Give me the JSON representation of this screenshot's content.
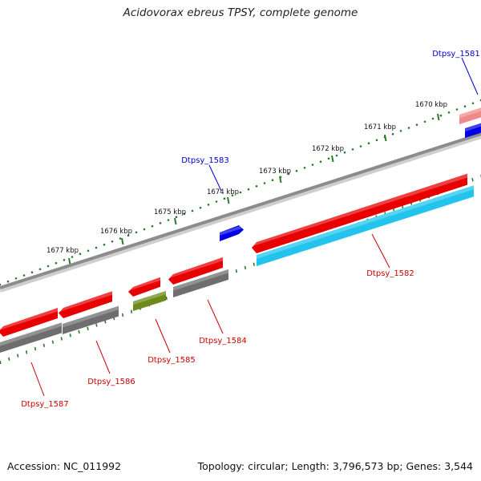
{
  "title": "Acidovorax ebreus TPSY, complete genome",
  "footer": {
    "accession": "Accession: NC_011992",
    "summary": "Topology: circular; Length: 3,796,573 bp; Genes: 3,544"
  },
  "kbp_ticks": [
    "1670 kbp",
    "1671 kbp",
    "1672 kbp",
    "1673 kbp",
    "1674 kbp",
    "1675 kbp",
    "1676 kbp",
    "1677 kbp"
  ],
  "gene_labels": [
    {
      "name": "Dtpsy_1581",
      "color": "#0000cc"
    },
    {
      "name": "Dtpsy_1582",
      "color": "#cc0000"
    },
    {
      "name": "Dtpsy_1583",
      "color": "#0000cc"
    },
    {
      "name": "Dtpsy_1584",
      "color": "#cc0000"
    },
    {
      "name": "Dtpsy_1585",
      "color": "#cc0000"
    },
    {
      "name": "Dtpsy_1586",
      "color": "#cc0000"
    },
    {
      "name": "Dtpsy_1587",
      "color": "#cc0000"
    }
  ],
  "colors": {
    "cds_forward": "#e80000",
    "cds_reverse": "#0000e6",
    "gene_gray": "#6e6e6e",
    "rna_cyan": "#22c4ee",
    "olive": "#6b8a1a",
    "pink": "#f08a8a",
    "backbone": "#8c8c8c",
    "tick_green": "#2a7a2a"
  }
}
